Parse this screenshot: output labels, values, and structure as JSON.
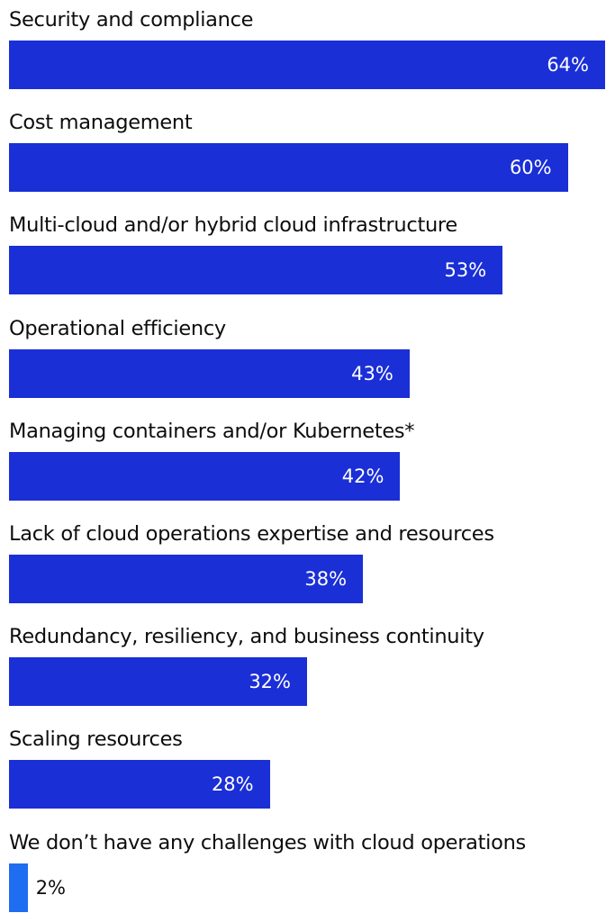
{
  "chart_data": {
    "type": "bar",
    "orientation": "horizontal",
    "value_suffix": "%",
    "xlim": [
      0,
      64
    ],
    "grid": false,
    "categories": [
      "Security and compliance",
      "Cost management",
      "Multi-cloud and/or hybrid cloud infrastructure",
      "Operational efficiency",
      "Managing containers and/or Kubernetes*",
      "Lack of cloud operations expertise and resources",
      "Redundancy, resiliency, and business continuity",
      "Scaling resources",
      "We don’t have any challenges with cloud operations"
    ],
    "values": [
      64,
      60,
      53,
      43,
      42,
      38,
      32,
      28,
      2
    ],
    "value_labels": [
      "64%",
      "60%",
      "53%",
      "43%",
      "42%",
      "38%",
      "32%",
      "28%",
      "2%"
    ],
    "colors": {
      "bar": "#1a2fd6",
      "bar_highlight": "#1f6df0",
      "label_inside": "#ffffff",
      "label_outside": "#0d0d0d"
    },
    "highlight_index": 8
  }
}
